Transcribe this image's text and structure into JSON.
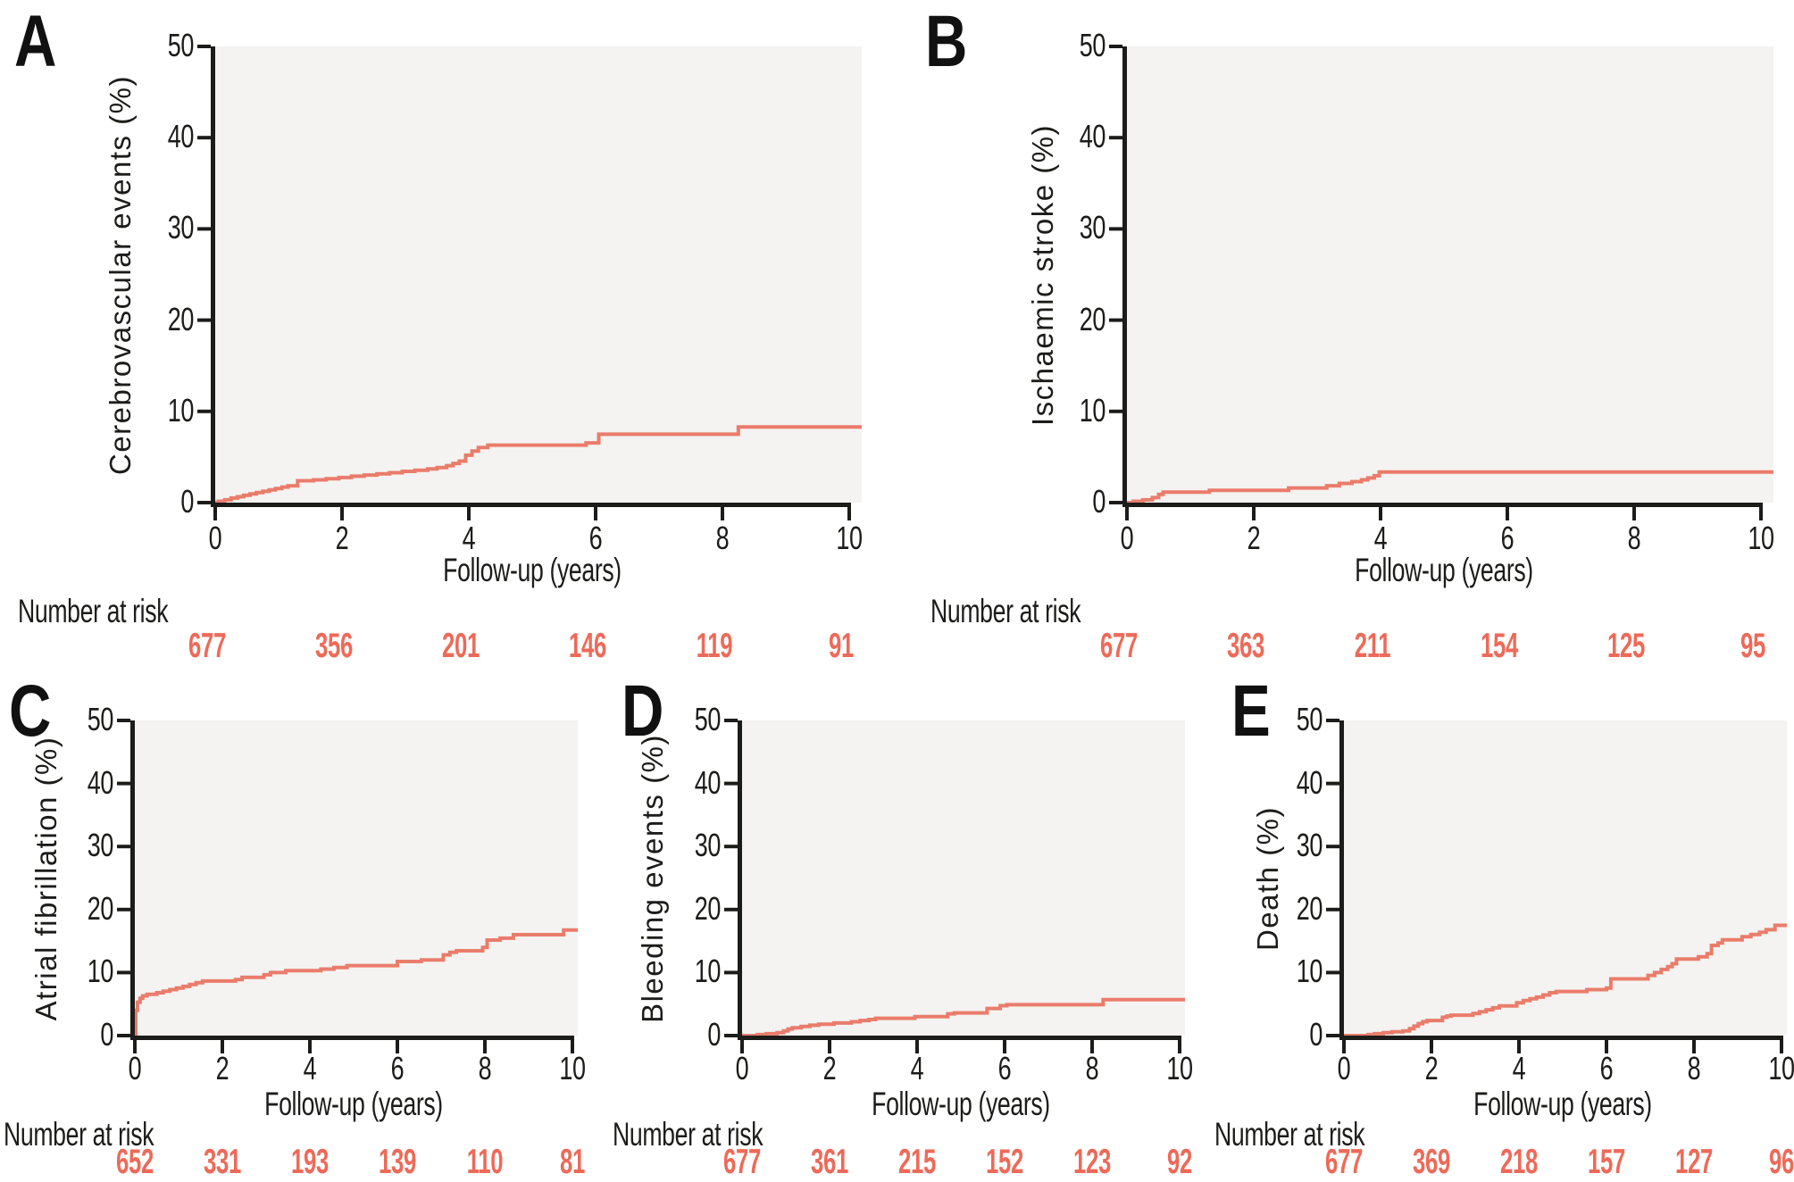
{
  "shared": {
    "xlabel": "Follow-up (years)",
    "number_at_risk_label": "Number at risk",
    "xticks": [
      0,
      2,
      4,
      6,
      8,
      10
    ],
    "yticks": [
      0,
      10,
      20,
      30,
      40,
      50
    ],
    "xlim": [
      0,
      10
    ],
    "ylim": [
      0,
      50
    ]
  },
  "colors": {
    "curve": "#EA7C6B",
    "at_risk_numbers": "#ED6A59",
    "plot_background": "#F4F3F1",
    "axis": "#1c1c1a"
  },
  "chart_data": [
    {
      "type": "line",
      "letter": "A",
      "ylabel": "Cerebrovascular events (%)",
      "xlabel": "Follow-up (years)",
      "x_range": [
        0,
        10
      ],
      "y_range": [
        0,
        50
      ],
      "legend": "none",
      "grid": false,
      "steps": [
        [
          0,
          0
        ],
        [
          0.05,
          0.15
        ],
        [
          0.15,
          0.3
        ],
        [
          0.25,
          0.5
        ],
        [
          0.35,
          0.65
        ],
        [
          0.45,
          0.8
        ],
        [
          0.55,
          0.95
        ],
        [
          0.65,
          1.1
        ],
        [
          0.75,
          1.25
        ],
        [
          0.85,
          1.4
        ],
        [
          0.95,
          1.55
        ],
        [
          1.05,
          1.7
        ],
        [
          1.15,
          1.85
        ],
        [
          1.3,
          2.4
        ],
        [
          1.55,
          2.5
        ],
        [
          1.75,
          2.62
        ],
        [
          1.95,
          2.75
        ],
        [
          2.15,
          2.9
        ],
        [
          2.35,
          3.02
        ],
        [
          2.55,
          3.15
        ],
        [
          2.75,
          3.28
        ],
        [
          2.95,
          3.42
        ],
        [
          3.15,
          3.55
        ],
        [
          3.35,
          3.7
        ],
        [
          3.5,
          3.85
        ],
        [
          3.65,
          4.05
        ],
        [
          3.75,
          4.3
        ],
        [
          3.85,
          4.55
        ],
        [
          3.95,
          5.2
        ],
        [
          4.05,
          5.65
        ],
        [
          4.15,
          6.05
        ],
        [
          4.3,
          6.3
        ],
        [
          5.85,
          6.55
        ],
        [
          6.05,
          7.5
        ],
        [
          8.25,
          8.3
        ],
        [
          10,
          8.3
        ]
      ],
      "number_at_risk": [
        677,
        356,
        201,
        146,
        119,
        91
      ]
    },
    {
      "type": "line",
      "letter": "B",
      "ylabel": "Ischaemic stroke (%)",
      "xlabel": "Follow-up (years)",
      "x_range": [
        0,
        10
      ],
      "y_range": [
        0,
        50
      ],
      "legend": "none",
      "grid": false,
      "steps": [
        [
          0,
          0
        ],
        [
          0.1,
          0.15
        ],
        [
          0.25,
          0.3
        ],
        [
          0.4,
          0.55
        ],
        [
          0.5,
          0.9
        ],
        [
          0.57,
          1.15
        ],
        [
          1.3,
          1.35
        ],
        [
          2.55,
          1.6
        ],
        [
          3.15,
          1.85
        ],
        [
          3.35,
          2.1
        ],
        [
          3.55,
          2.3
        ],
        [
          3.7,
          2.5
        ],
        [
          3.8,
          2.7
        ],
        [
          3.9,
          2.95
        ],
        [
          3.98,
          3.35
        ],
        [
          10,
          3.35
        ]
      ],
      "number_at_risk": [
        677,
        363,
        211,
        154,
        125,
        95
      ]
    },
    {
      "type": "line",
      "letter": "C",
      "ylabel": "Atrial fibrillation (%)",
      "xlabel": "Follow-up (years)",
      "x_range": [
        0,
        10
      ],
      "y_range": [
        0,
        50
      ],
      "legend": "none",
      "grid": false,
      "steps": [
        [
          0,
          0
        ],
        [
          0.02,
          4
        ],
        [
          0.06,
          5.3
        ],
        [
          0.12,
          5.9
        ],
        [
          0.18,
          6.3
        ],
        [
          0.28,
          6.55
        ],
        [
          0.5,
          6.8
        ],
        [
          0.65,
          7.05
        ],
        [
          0.8,
          7.3
        ],
        [
          0.95,
          7.55
        ],
        [
          1.1,
          7.8
        ],
        [
          1.25,
          8.1
        ],
        [
          1.4,
          8.4
        ],
        [
          1.55,
          8.65
        ],
        [
          2.3,
          8.9
        ],
        [
          2.45,
          9.25
        ],
        [
          2.95,
          9.65
        ],
        [
          3.1,
          10
        ],
        [
          3.45,
          10.3
        ],
        [
          4.25,
          10.55
        ],
        [
          4.55,
          10.8
        ],
        [
          4.85,
          11.1
        ],
        [
          6,
          11.75
        ],
        [
          6.55,
          12
        ],
        [
          7.05,
          12.8
        ],
        [
          7.2,
          13.2
        ],
        [
          7.35,
          13.45
        ],
        [
          7.95,
          14
        ],
        [
          8.05,
          15.15
        ],
        [
          8.35,
          15.45
        ],
        [
          8.65,
          16
        ],
        [
          9.8,
          16.75
        ],
        [
          10,
          16.75
        ]
      ],
      "number_at_risk": [
        652,
        331,
        193,
        139,
        110,
        81
      ]
    },
    {
      "type": "line",
      "letter": "D",
      "ylabel": "Bleeding events (%)",
      "xlabel": "Follow-up (years)",
      "x_range": [
        0,
        10
      ],
      "y_range": [
        0,
        50
      ],
      "legend": "none",
      "grid": false,
      "steps": [
        [
          0,
          0
        ],
        [
          0.35,
          0.15
        ],
        [
          0.55,
          0.3
        ],
        [
          0.8,
          0.45
        ],
        [
          0.95,
          0.75
        ],
        [
          1.05,
          1.05
        ],
        [
          1.15,
          1.25
        ],
        [
          1.35,
          1.45
        ],
        [
          1.55,
          1.65
        ],
        [
          1.75,
          1.8
        ],
        [
          2.1,
          2
        ],
        [
          2.5,
          2.2
        ],
        [
          2.7,
          2.4
        ],
        [
          2.9,
          2.55
        ],
        [
          3.05,
          2.75
        ],
        [
          3.95,
          3
        ],
        [
          4.7,
          3.45
        ],
        [
          4.85,
          3.6
        ],
        [
          5.6,
          4.3
        ],
        [
          5.9,
          4.75
        ],
        [
          6.05,
          4.9
        ],
        [
          8.25,
          5.7
        ],
        [
          10,
          5.7
        ]
      ],
      "number_at_risk": [
        677,
        361,
        215,
        152,
        123,
        92
      ]
    },
    {
      "type": "line",
      "letter": "E",
      "ylabel": "Death (%)",
      "xlabel": "Follow-up (years)",
      "x_range": [
        0,
        10
      ],
      "y_range": [
        0,
        50
      ],
      "legend": "none",
      "grid": false,
      "steps": [
        [
          0,
          0
        ],
        [
          0.55,
          0.15
        ],
        [
          0.7,
          0.3
        ],
        [
          0.9,
          0.45
        ],
        [
          1.1,
          0.6
        ],
        [
          1.35,
          0.75
        ],
        [
          1.5,
          1.1
        ],
        [
          1.6,
          1.5
        ],
        [
          1.7,
          1.9
        ],
        [
          1.8,
          2.2
        ],
        [
          1.9,
          2.4
        ],
        [
          2.25,
          2.9
        ],
        [
          2.35,
          3.1
        ],
        [
          2.45,
          3.25
        ],
        [
          2.95,
          3.5
        ],
        [
          3.1,
          3.8
        ],
        [
          3.25,
          4.1
        ],
        [
          3.4,
          4.4
        ],
        [
          3.55,
          4.7
        ],
        [
          3.95,
          5.2
        ],
        [
          4.1,
          5.55
        ],
        [
          4.25,
          5.85
        ],
        [
          4.4,
          6.1
        ],
        [
          4.55,
          6.45
        ],
        [
          4.7,
          6.8
        ],
        [
          4.85,
          7
        ],
        [
          5.55,
          7.3
        ],
        [
          6,
          7.55
        ],
        [
          6.1,
          9
        ],
        [
          6.95,
          9.55
        ],
        [
          7.1,
          10
        ],
        [
          7.25,
          10.5
        ],
        [
          7.4,
          10.95
        ],
        [
          7.5,
          11.4
        ],
        [
          7.6,
          12.15
        ],
        [
          8.1,
          12.5
        ],
        [
          8.3,
          13
        ],
        [
          8.4,
          14.3
        ],
        [
          8.55,
          14.7
        ],
        [
          8.65,
          15.2
        ],
        [
          9.1,
          15.7
        ],
        [
          9.3,
          16.05
        ],
        [
          9.5,
          16.4
        ],
        [
          9.65,
          16.8
        ],
        [
          9.85,
          17.5
        ],
        [
          10,
          17.5
        ]
      ],
      "number_at_risk": [
        677,
        369,
        218,
        157,
        127,
        96
      ]
    }
  ]
}
